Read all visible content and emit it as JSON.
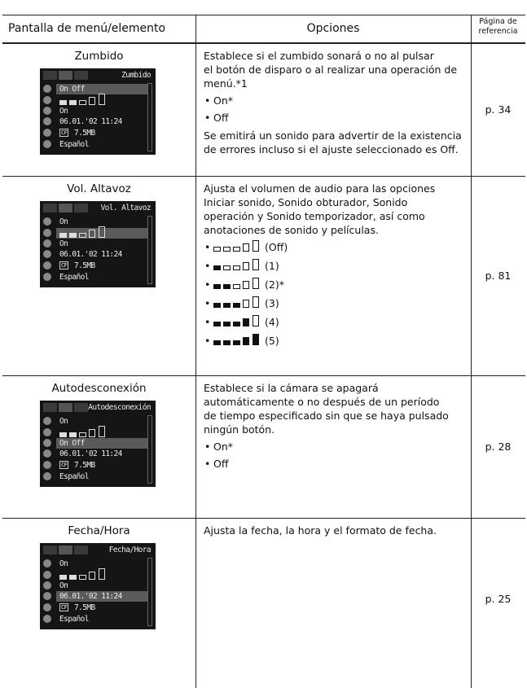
{
  "header": {
    "col1": "Pantalla de menú/elemento",
    "col2": "Opciones",
    "col3": [
      "Página de",
      "referencia"
    ]
  },
  "rows": [
    {
      "name": "Zumbido",
      "screen": {
        "title": "Zumbido",
        "beep": "On Off",
        "power": "On",
        "date": "06.01.'02 11:24",
        "card": "CF",
        "size": "7.5MB",
        "lang": "Español"
      },
      "text": [
        "Establece si el zumbido sonará o no al pulsar",
        "el botón de disparo o al realizar una operación de",
        "menú.*1"
      ],
      "bullets": [
        "On*",
        "Off"
      ],
      "note": [
        "Se emitirá un sonido para advertir de la existencia",
        "de errores incluso si el ajuste seleccionado es Off."
      ],
      "page": "p. 34"
    },
    {
      "name": "Vol. Altavoz",
      "screen": {
        "title": "Vol. Altavoz",
        "beep": "On",
        "power": "On",
        "date": "06.01.'02 11:24",
        "card": "CF",
        "size": "7.5MB",
        "lang": "Español"
      },
      "text": [
        "Ajusta el volumen de audio para las opciones",
        "Iniciar sonido, Sonido obturador, Sonido",
        "operación y Sonido temporizador, así como",
        "anotaciones de sonido y películas."
      ],
      "levels": [
        "(Off)",
        "(1)",
        "(2)*",
        "(3)",
        "(4)",
        "(5)"
      ],
      "page": "p. 81"
    },
    {
      "name": "Autodesconexión",
      "screen": {
        "title": "Autodesconexión",
        "beep": "On",
        "power": "On Off",
        "date": "06.01.'02 11:24",
        "card": "CF",
        "size": "7.5MB",
        "lang": "Español"
      },
      "text": [
        "Establece si la cámara se apagará",
        "automáticamente o no después de un período",
        "de tiempo especificado sin que se haya pulsado",
        "ningún botón."
      ],
      "bullets": [
        "On*",
        "Off"
      ],
      "page": "p. 28"
    },
    {
      "name": "Fecha/Hora",
      "screen": {
        "title": "Fecha/Hora",
        "beep": "On",
        "power": "On",
        "date": "06.01.'02 11:24",
        "card": "CF",
        "size": "7.5MB",
        "lang": "Español"
      },
      "text": [
        "Ajusta la fecha, la hora y el formato de fecha."
      ],
      "page": "p. 25"
    }
  ]
}
